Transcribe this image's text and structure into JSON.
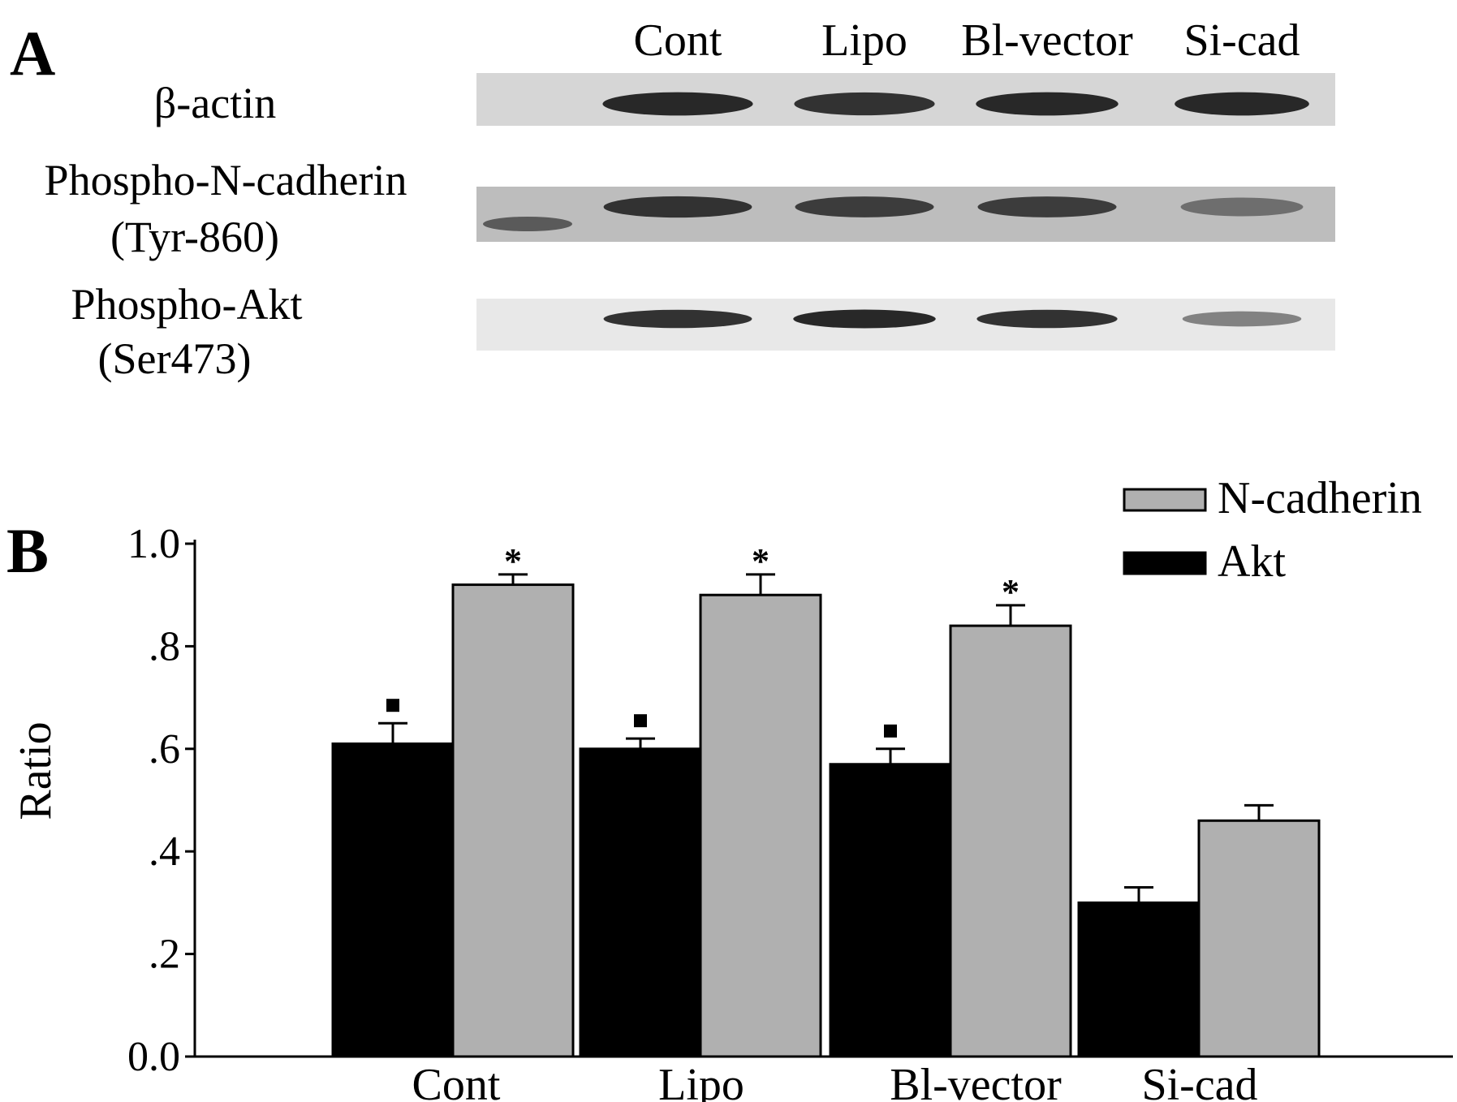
{
  "panel_a": {
    "label": "A",
    "lane_labels": [
      "Cont",
      "Lipo",
      "Bl-vector",
      "Si-cad"
    ],
    "rows": [
      {
        "label_lines": [
          "β-actin"
        ],
        "band_intensity": [
          0.9,
          0.85,
          0.9,
          0.9
        ]
      },
      {
        "label_lines": [
          "Phospho-N-cadherin",
          "(Tyr-860)"
        ],
        "band_intensity": [
          0.85,
          0.8,
          0.8,
          0.55
        ]
      },
      {
        "label_lines": [
          "Phospho-Akt",
          "(Ser473)"
        ],
        "band_intensity": [
          0.85,
          0.9,
          0.85,
          0.45
        ]
      }
    ]
  },
  "panel_b": {
    "label": "B"
  },
  "chart_data": {
    "type": "bar",
    "categories": [
      "Cont",
      "Lipo",
      "Bl-vector",
      "Si-cad"
    ],
    "series": [
      {
        "name": "Akt",
        "color": "#000000",
        "values": [
          0.61,
          0.6,
          0.57,
          0.3
        ],
        "errors": [
          0.04,
          0.02,
          0.03,
          0.03
        ],
        "markers": [
          "■",
          "■",
          "■",
          ""
        ]
      },
      {
        "name": "N-cadherin",
        "color": "#b0b0b0",
        "values": [
          0.92,
          0.9,
          0.84,
          0.46
        ],
        "errors": [
          0.02,
          0.04,
          0.04,
          0.03
        ],
        "markers": [
          "*",
          "*",
          "*",
          ""
        ]
      }
    ],
    "ylabel": "Ratio",
    "xlabel": "",
    "ylim": [
      0,
      1.0
    ],
    "yticks": [
      {
        "value": 0.0,
        "label": "0.0"
      },
      {
        "value": 0.2,
        "label": ".2"
      },
      {
        "value": 0.4,
        "label": ".4"
      },
      {
        "value": 0.6,
        "label": ".6"
      },
      {
        "value": 0.8,
        "label": ".8"
      },
      {
        "value": 1.0,
        "label": "1.0"
      }
    ],
    "legend": {
      "placement": "top-right",
      "entries": [
        {
          "label": "N-cadherin",
          "color": "#b0b0b0"
        },
        {
          "label": "Akt",
          "color": "#000000"
        }
      ]
    },
    "grid": false
  }
}
